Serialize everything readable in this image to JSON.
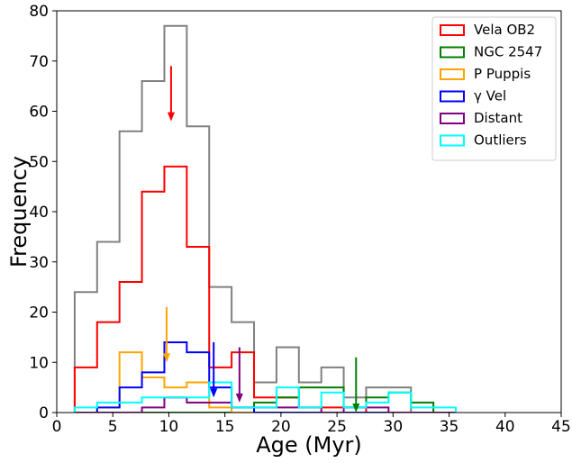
{
  "chart_data": {
    "type": "histogram",
    "xlabel": "Age (Myr)",
    "ylabel": "Frequency",
    "xlim": [
      0,
      45
    ],
    "ylim": [
      0,
      80
    ],
    "xticks": [
      0,
      5,
      10,
      15,
      20,
      25,
      30,
      35,
      40,
      45
    ],
    "yticks": [
      0,
      10,
      20,
      30,
      40,
      50,
      60,
      70,
      80
    ],
    "grid": false,
    "legend_position": "top-right",
    "bin_edges": [
      1.6,
      3.6,
      5.6,
      7.6,
      9.6,
      11.6,
      13.6,
      15.6,
      17.6,
      19.6,
      21.6,
      23.6,
      25.6,
      27.6,
      29.6,
      31.6,
      33.6,
      35.6
    ],
    "total_histogram": {
      "color": "#808080",
      "values": [
        24,
        34,
        56,
        66,
        77,
        57,
        25,
        18,
        6,
        13,
        6,
        9,
        3,
        5,
        5,
        0,
        0
      ]
    },
    "series": [
      {
        "name": "Vela OB2",
        "color": "#ff0000",
        "values": [
          9,
          18,
          26,
          44,
          49,
          33,
          9,
          12,
          3,
          3,
          1,
          1,
          1,
          0,
          0,
          0,
          0
        ],
        "arrow_age": 10.2
      },
      {
        "name": "NGC 2547",
        "color": "#008000",
        "values": [
          0,
          0,
          0,
          0,
          0,
          0,
          0,
          0,
          2,
          3,
          5,
          5,
          1,
          3,
          4,
          2,
          0
        ],
        "arrow_age": 26.7
      },
      {
        "name": "P Puppis",
        "color": "#ffa500",
        "values": [
          0,
          1,
          12,
          7,
          5,
          6,
          1,
          0,
          0,
          0,
          0,
          0,
          0,
          0,
          0,
          0,
          0
        ],
        "arrow_age": 9.8
      },
      {
        "name": "γ Vel",
        "color": "#0000ff",
        "values": [
          0,
          1,
          5,
          8,
          14,
          12,
          5,
          1,
          0,
          0,
          0,
          0,
          0,
          0,
          0,
          0,
          0
        ],
        "arrow_age": 14.0
      },
      {
        "name": "Distant",
        "color": "#800080",
        "values": [
          0,
          0,
          0,
          1,
          3,
          2,
          2,
          1,
          1,
          1,
          1,
          0,
          1,
          1,
          0,
          0,
          0
        ],
        "arrow_age": 16.3
      },
      {
        "name": "Outliers",
        "color": "#00ffff",
        "values": [
          1,
          2,
          2,
          3,
          3,
          3,
          6,
          1,
          1,
          5,
          1,
          4,
          1,
          2,
          4,
          1,
          1
        ]
      }
    ],
    "arrows": [
      {
        "series": "Vela OB2",
        "age": 10.2,
        "from": 69,
        "to": 58
      },
      {
        "series": "P Puppis",
        "age": 9.8,
        "from": 21,
        "to": 10
      },
      {
        "series": "γ Vel",
        "age": 14.0,
        "from": 14,
        "to": 3
      },
      {
        "series": "Distant",
        "age": 16.3,
        "from": 13,
        "to": 2
      },
      {
        "series": "NGC 2547",
        "age": 26.7,
        "from": 11,
        "to": 0
      }
    ]
  }
}
